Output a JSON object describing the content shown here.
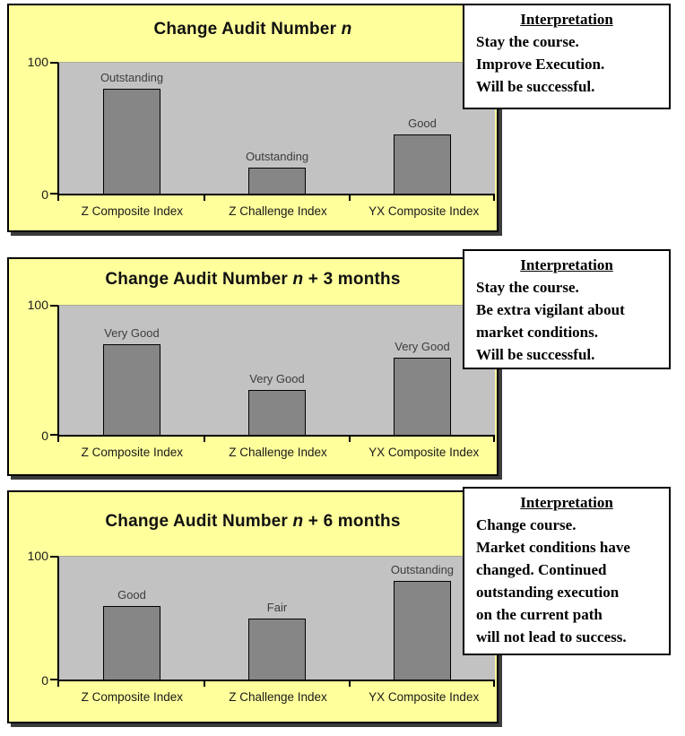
{
  "colors": {
    "panel_bg": "#FFFF9C",
    "plot_bg": "#C2C2C2",
    "bar_fill": "#868686",
    "bar_border": "#000000",
    "panel_border": "#000000",
    "panel_shadow": "#3C3C3C",
    "box_bg": "#FFFFFF",
    "text": "#000000"
  },
  "y_axis": {
    "top_label": "100",
    "bottom_label": "0"
  },
  "chart_data": [
    {
      "type": "bar",
      "title": "Change Audit Number n",
      "title_parts": {
        "prefix": "Change Audit Number ",
        "variable": "n",
        "suffix": ""
      },
      "categories": [
        "Z Composite Index",
        "Z Challenge Index",
        "YX Composite Index"
      ],
      "values": [
        80,
        20,
        45
      ],
      "bar_labels": [
        "Outstanding",
        "Outstanding",
        "Good"
      ],
      "ylim": [
        0,
        100
      ],
      "yticks": [
        0,
        100
      ],
      "grid": false,
      "legend": false
    },
    {
      "type": "bar",
      "title": "Change Audit Number n + 3 months",
      "title_parts": {
        "prefix": "Change Audit Number ",
        "variable": "n",
        "suffix": " + 3 months"
      },
      "categories": [
        "Z Composite Index",
        "Z Challenge Index",
        "YX Composite Index"
      ],
      "values": [
        70,
        35,
        60
      ],
      "bar_labels": [
        "Very Good",
        "Very Good",
        "Very Good"
      ],
      "ylim": [
        0,
        100
      ],
      "yticks": [
        0,
        100
      ],
      "grid": false,
      "legend": false
    },
    {
      "type": "bar",
      "title": "Change Audit Number n + 6 months",
      "title_parts": {
        "prefix": "Change Audit Number ",
        "variable": "n",
        "suffix": " + 6 months"
      },
      "categories": [
        "Z Composite Index",
        "Z Challenge Index",
        "YX Composite Index"
      ],
      "values": [
        60,
        50,
        80
      ],
      "bar_labels": [
        "Good",
        "Fair",
        "Outstanding"
      ],
      "ylim": [
        0,
        100
      ],
      "yticks": [
        0,
        100
      ],
      "grid": false,
      "legend": false
    }
  ],
  "interpretations": [
    {
      "heading": "Interpretation",
      "lines": [
        "Stay the course.",
        "Improve Execution.",
        "Will be successful."
      ]
    },
    {
      "heading": "Interpretation",
      "lines": [
        "Stay the course.",
        "Be extra vigilant about",
        "market conditions.",
        "Will be successful."
      ]
    },
    {
      "heading": "Interpretation",
      "lines": [
        "Change course.",
        "Market conditions have",
        "changed. Continued",
        "outstanding execution",
        "on the current path",
        "will not lead to success."
      ]
    }
  ]
}
